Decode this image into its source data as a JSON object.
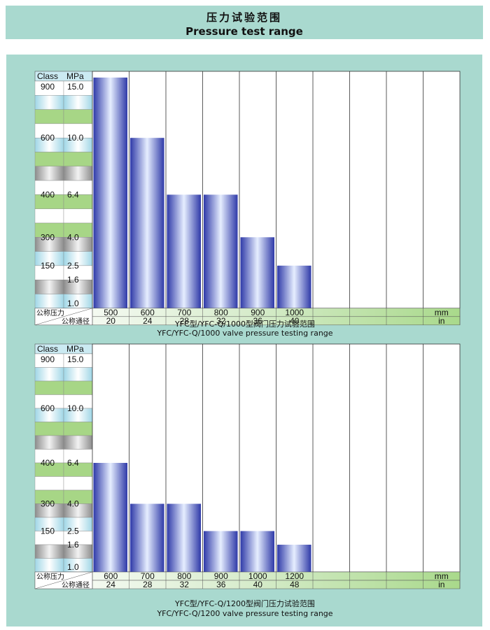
{
  "header": {
    "title_cn": "压力试验范围",
    "title_en": "Pressure test range"
  },
  "labels": {
    "class": "Class",
    "mpa": "MPa",
    "nominal_pressure": "公称压力",
    "nominal_diameter": "公称通径",
    "mm": "mm",
    "in": "in"
  },
  "colors": {
    "panel_bg": "#a9d9cf",
    "bar_dark": "#3443b0",
    "bar_light": "#e4ecff",
    "row_green": "#a7d686",
    "row_blue": "#cbeaf2",
    "row_gray": "#9c9c9c"
  },
  "chart_data": [
    {
      "type": "bar",
      "caption_cn": "YFC型/YFC-Q/1000型阀门压力试验范围",
      "caption_en": "YFC/YFC-Q/1000 valve pressure testing range",
      "ylabel": "Class / MPa",
      "y_ticks": [
        {
          "class": "900",
          "mpa": "15.0",
          "level": 0
        },
        {
          "class": "600",
          "mpa": "10.0",
          "level": 4
        },
        {
          "class": "400",
          "mpa": "6.4",
          "level": 8
        },
        {
          "class": "300",
          "mpa": "4.0",
          "level": 11
        },
        {
          "class": "150",
          "mpa": "2.5",
          "level": 13
        },
        {
          "class": "",
          "mpa": "1.6",
          "level": 14
        },
        {
          "class": "",
          "mpa": "1.0",
          "level": 15
        }
      ],
      "categories_mm": [
        "500",
        "600",
        "700",
        "800",
        "900",
        "1000"
      ],
      "categories_in": [
        "20",
        "24",
        "28",
        "32",
        "36",
        "40"
      ],
      "values_mpa": [
        15.0,
        10.0,
        6.4,
        6.4,
        4.0,
        2.5
      ],
      "values_class": [
        "900",
        "600",
        "400",
        "400",
        "300",
        "150"
      ]
    },
    {
      "type": "bar",
      "caption_cn": "YFC型/YFC-Q/1200型阀门压力试验范围",
      "caption_en": "YFC/YFC-Q/1200 valve pressure testing range",
      "ylabel": "Class / MPa",
      "y_ticks": [
        {
          "class": "900",
          "mpa": "15.0",
          "level": 0
        },
        {
          "class": "600",
          "mpa": "10.0",
          "level": 4
        },
        {
          "class": "400",
          "mpa": "6.4",
          "level": 8
        },
        {
          "class": "300",
          "mpa": "4.0",
          "level": 11
        },
        {
          "class": "150",
          "mpa": "2.5",
          "level": 13
        },
        {
          "class": "",
          "mpa": "1.6",
          "level": 14
        },
        {
          "class": "",
          "mpa": "1.0",
          "level": 15
        }
      ],
      "categories_mm": [
        "600",
        "700",
        "800",
        "900",
        "1000",
        "1200"
      ],
      "categories_in": [
        "24",
        "28",
        "32",
        "36",
        "40",
        "48"
      ],
      "values_mpa": [
        6.4,
        4.0,
        4.0,
        2.5,
        2.5,
        1.6
      ],
      "values_class": [
        "400",
        "300",
        "300",
        "150",
        "150",
        ""
      ]
    }
  ]
}
